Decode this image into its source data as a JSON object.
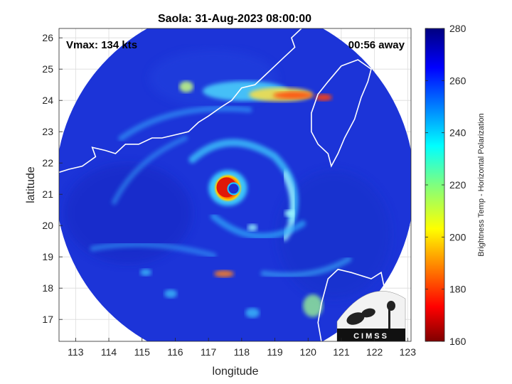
{
  "chart_data": {
    "type": "heatmap",
    "title": "Saola: 31-Aug-2023 08:00:00",
    "xlabel": "longitude",
    "ylabel": "latitude",
    "xlim": [
      112.5,
      123.1
    ],
    "ylim": [
      16.3,
      26.3
    ],
    "x_ticks": [
      113,
      114,
      115,
      116,
      117,
      118,
      119,
      120,
      121,
      122,
      123
    ],
    "y_ticks": [
      17,
      18,
      19,
      20,
      21,
      22,
      23,
      24,
      25,
      26
    ],
    "grid": true,
    "annotations": {
      "vmax": "Vmax: 134 kts",
      "time_away": "00:56 away"
    },
    "storm_center": {
      "lon": 117.8,
      "lat": 21.2
    },
    "swath": {
      "center_lon": 117.8,
      "center_lat": 21.3,
      "radius_deg": 5.4
    },
    "colorbar": {
      "label": "Brightness Temp - Horizontal Polarization",
      "min": 160,
      "max": 280,
      "ticks": [
        160,
        180,
        200,
        220,
        240,
        260,
        280
      ]
    },
    "logo": "CIMSS",
    "colors": {
      "background_field": "#1c2fd6",
      "cold_core": "#d81a0a"
    }
  }
}
